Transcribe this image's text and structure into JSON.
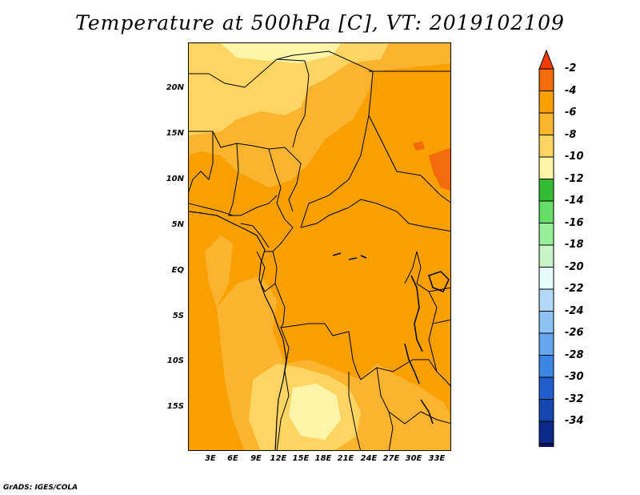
{
  "title": "Temperature at 500hPa [C], VT: 2019102109",
  "credit": "GrADS: IGES/COLA",
  "map": {
    "lat_labels": [
      "20N",
      "15N",
      "10N",
      "5N",
      "EQ",
      "5S",
      "10S",
      "15S"
    ],
    "lon_labels": [
      "3E",
      "6E",
      "9E",
      "12E",
      "15E",
      "18E",
      "21E",
      "24E",
      "27E",
      "30E",
      "33E"
    ],
    "colors": {
      "band_neg2_neg4": "#f46a0c",
      "band_neg4_neg6": "#f8a000",
      "band_neg6_neg8": "#fab430",
      "band_neg8_neg10": "#fed463",
      "band_neg10_neg12": "#fff5a8"
    }
  },
  "colorbar": {
    "labels": [
      "-2",
      "-4",
      "-6",
      "-8",
      "-10",
      "-12",
      "-14",
      "-16",
      "-18",
      "-20",
      "-22",
      "-24",
      "-26",
      "-28",
      "-30",
      "-32",
      "-34"
    ],
    "colors": [
      "#f03c00",
      "#f46a0c",
      "#f8a000",
      "#fab430",
      "#fed463",
      "#fff5a8",
      "#33bb33",
      "#66dd66",
      "#99ee99",
      "#c8f5c8",
      "#e8fbfb",
      "#b3d8f8",
      "#8ec2f4",
      "#65a6ee",
      "#3a86e2",
      "#1e5fcc",
      "#1448b0",
      "#0a2a8a",
      "#0a1060",
      "#dcdcf5"
    ]
  }
}
